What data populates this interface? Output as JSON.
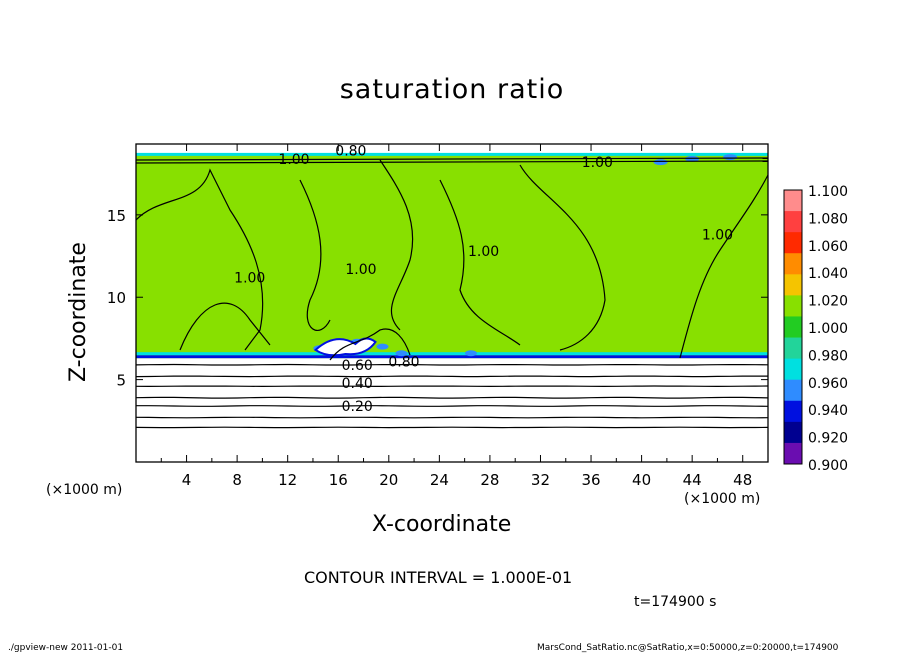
{
  "chart_data": {
    "type": "heatmap",
    "title": "saturation ratio",
    "xlabel": "X-coordinate",
    "ylabel": "Z-coordinate",
    "x_unit": "(×1000 m)",
    "x_unit_right": "(×1000 m)",
    "xlim": [
      0,
      50
    ],
    "ylim": [
      0,
      19.3
    ],
    "x_ticks": [
      "4",
      "8",
      "12",
      "16",
      "20",
      "24",
      "28",
      "32",
      "36",
      "40",
      "44",
      "48"
    ],
    "y_ticks": [
      "5",
      "10",
      "15"
    ],
    "x_tick_values": [
      4,
      8,
      12,
      16,
      20,
      24,
      28,
      32,
      36,
      40,
      44,
      48
    ],
    "y_tick_values": [
      5,
      10,
      15
    ],
    "colorbar": {
      "labels": [
        "1.100",
        "1.080",
        "1.060",
        "1.040",
        "1.020",
        "1.000",
        "0.980",
        "0.960",
        "0.940",
        "0.920",
        "0.900"
      ],
      "colors": [
        "#ff8c8c",
        "#ff4040",
        "#ff2a00",
        "#ff8c00",
        "#f5c400",
        "#88e000",
        "#22cc22",
        "#22d49a",
        "#00e0e0",
        "#2f8cff",
        "#0010e0",
        "#000090",
        "#6a0db0"
      ]
    },
    "contour_labels": [
      {
        "text": "0.80",
        "x": 17.0,
        "z": 18.9
      },
      {
        "text": "1.00",
        "x": 12.5,
        "z": 18.4
      },
      {
        "text": "1.00",
        "x": 36.5,
        "z": 18.2
      },
      {
        "text": "1.00",
        "x": 9.0,
        "z": 11.2
      },
      {
        "text": "1.00",
        "x": 17.8,
        "z": 11.7
      },
      {
        "text": "1.00",
        "x": 27.5,
        "z": 12.8
      },
      {
        "text": "1.00",
        "x": 46.0,
        "z": 13.8
      },
      {
        "text": "0.60",
        "x": 17.5,
        "z": 5.9
      },
      {
        "text": "0.80",
        "x": 21.2,
        "z": 6.1
      },
      {
        "text": "0.40",
        "x": 17.5,
        "z": 4.8
      },
      {
        "text": "0.20",
        "x": 17.5,
        "z": 3.4
      }
    ],
    "subsaturated_contours": [
      0.2,
      0.4,
      0.6,
      0.8
    ],
    "saturated_layer_z": [
      6.3,
      18.7
    ],
    "saturated_value": 1.0
  },
  "contour_interval": "CONTOUR INTERVAL = 1.000E-01",
  "time_label": "t=174900 s",
  "footer": {
    "left": "./gpview-new   2011-01-01",
    "right": "MarsCond_SatRatio.nc@SatRatio,x=0:50000,z=0:20000,t=174900"
  }
}
